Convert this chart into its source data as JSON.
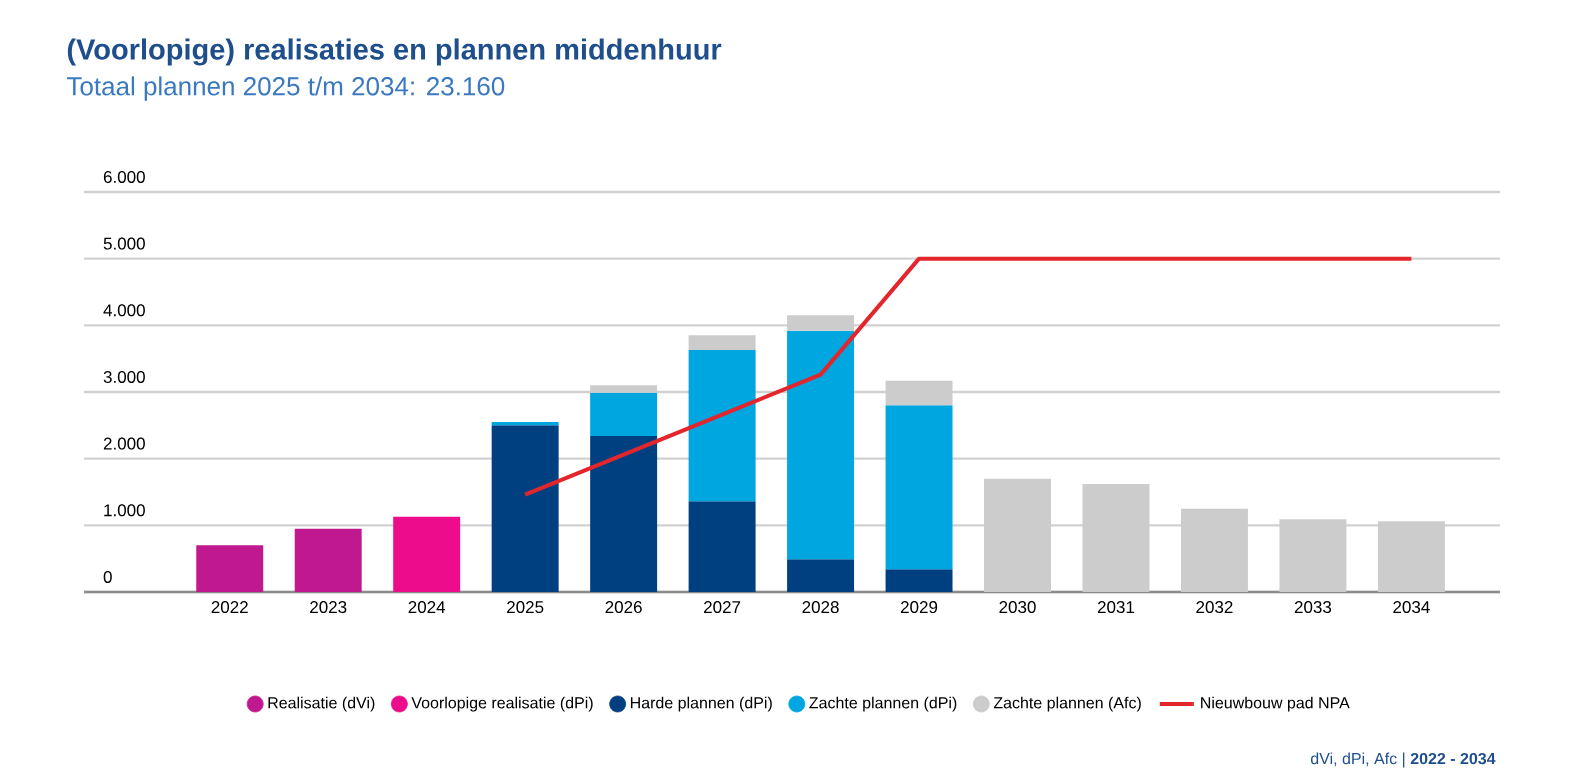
{
  "chart_data": {
    "type": "bar",
    "title": "(Voorlopige) realisaties en plannen middenhuur",
    "subtitle": "Totaal plannen 2025 t/m 2034: 23.160",
    "categories": [
      "2022",
      "2023",
      "2024",
      "2025",
      "2026",
      "2027",
      "2028",
      "2029",
      "2030",
      "2031",
      "2032",
      "2033",
      "2034"
    ],
    "stacked": true,
    "series": [
      {
        "name": "Realisatie (dVi)",
        "color": "#c0198f",
        "values": [
          700,
          950,
          null,
          null,
          null,
          null,
          null,
          null,
          null,
          null,
          null,
          null,
          null
        ]
      },
      {
        "name": "Voorlopige realisatie (dPi)",
        "color": "#ec0c8c",
        "values": [
          null,
          null,
          1130,
          null,
          null,
          null,
          null,
          null,
          null,
          null,
          null,
          null,
          null
        ]
      },
      {
        "name": "Harde plannen (dPi)",
        "color": "#004080",
        "values": [
          null,
          null,
          null,
          2500,
          2340,
          1360,
          490,
          340,
          null,
          null,
          null,
          null,
          null
        ]
      },
      {
        "name": "Zachte plannen (dPi)",
        "color": "#00a6e0",
        "values": [
          null,
          null,
          null,
          50,
          650,
          2270,
          3430,
          2460,
          null,
          null,
          null,
          null,
          null
        ]
      },
      {
        "name": "Zachte plannen (Afc)",
        "color": "#cccccc",
        "values": [
          null,
          null,
          null,
          null,
          110,
          220,
          230,
          370,
          1700,
          1620,
          1250,
          1090,
          1060
        ]
      },
      {
        "name": "Nieuwbouw pad NPA",
        "color": "#e3262b",
        "type": "line",
        "values": [
          null,
          null,
          null,
          1460,
          2060,
          2660,
          3260,
          5000,
          5000,
          5000,
          5000,
          5000,
          5000
        ]
      }
    ],
    "ylim": [
      0,
      6000
    ],
    "yticks": [
      {
        "value": 0,
        "label": "0"
      },
      {
        "value": 1000,
        "label": "1.000"
      },
      {
        "value": 2000,
        "label": "2.000"
      },
      {
        "value": 3000,
        "label": "3.000"
      },
      {
        "value": 4000,
        "label": "4.000"
      },
      {
        "value": 5000,
        "label": "5.000"
      },
      {
        "value": 6000,
        "label": "6.000"
      }
    ],
    "grid": "y",
    "legend": "bottom",
    "marker": "none",
    "annotations": [
      "dVi, dPi, Afc | **2022 - 2034**"
    ]
  }
}
